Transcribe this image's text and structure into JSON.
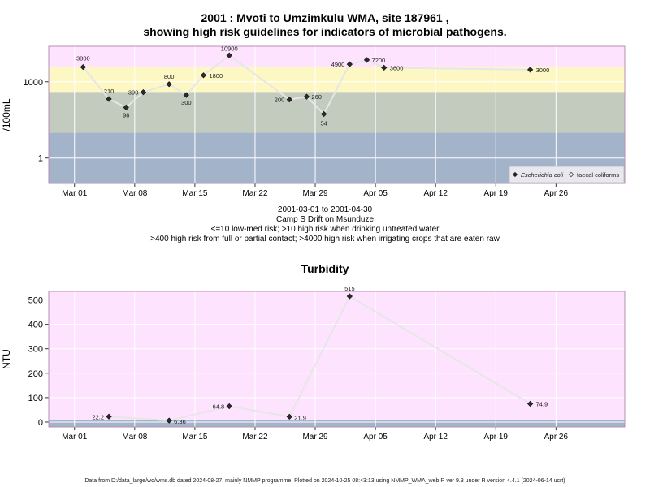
{
  "chart_data": [
    {
      "type": "scatter",
      "title_line1": "2001 : Mvoti to Umzimkulu WMA, site 187961 ,",
      "title_line2": "showing high risk guidelines for indicators of microbial pathogens.",
      "ylabel": "/100mL",
      "yscale": "log10",
      "ylim": [
        0.1,
        25000
      ],
      "xlim": [
        "2001-02-26",
        "2001-05-04"
      ],
      "ytick_values": [
        1,
        1000
      ],
      "ytick_labels": [
        "1",
        "1000"
      ],
      "xtick_dates": [
        "2001-03-01",
        "2001-03-08",
        "2001-03-15",
        "2001-03-22",
        "2001-03-29",
        "2001-04-05",
        "2001-04-12",
        "2001-04-19",
        "2001-04-26"
      ],
      "xtick_labels": [
        "Mar 01",
        "Mar 08",
        "Mar 15",
        "Mar 22",
        "Mar 29",
        "Apr 05",
        "Apr 12",
        "Apr 19",
        "Apr 26"
      ],
      "bands": [
        {
          "from": 0.1,
          "to": 10,
          "color": "#a3b3ca"
        },
        {
          "from": 10,
          "to": 400,
          "color": "#c3cbbe"
        },
        {
          "from": 400,
          "to": 4000,
          "color": "#fdf7c4"
        },
        {
          "from": 4000,
          "to": 25000,
          "color": "#fde3fd"
        }
      ],
      "grid": true,
      "legend_position": "bottom-right",
      "legend": [
        {
          "label": "Escherichia coli",
          "marker": "filled-diamond",
          "italic": true
        },
        {
          "label": "faecal coliforms",
          "marker": "open-diamond",
          "italic": false
        }
      ],
      "series": [
        {
          "name": "Escherichia coli",
          "x": [
            "2001-03-02",
            "2001-03-05",
            "2001-03-07",
            "2001-03-09",
            "2001-03-12",
            "2001-03-14",
            "2001-03-16",
            "2001-03-19",
            "2001-03-26",
            "2001-03-28",
            "2001-03-30",
            "2001-04-02",
            "2001-04-04",
            "2001-04-06",
            "2001-04-23"
          ],
          "y": [
            3800,
            210,
            98,
            390,
            800,
            300,
            1800,
            10900,
            200,
            260,
            54,
            4900,
            7200,
            3600,
            3000
          ],
          "labels": [
            "3800",
            "210",
            "98",
            "390",
            "800",
            "300",
            "1800",
            "10900",
            "200",
            "260",
            "54",
            "4900",
            "7200",
            "3600",
            "3000"
          ]
        }
      ]
    },
    {
      "type": "scatter",
      "title": "Turbidity",
      "ylabel": "NTU",
      "ylim": [
        -20,
        535
      ],
      "xlim": [
        "2001-02-26",
        "2001-05-04"
      ],
      "yticks": [
        0,
        100,
        200,
        300,
        400,
        500
      ],
      "xtick_dates": [
        "2001-03-01",
        "2001-03-08",
        "2001-03-15",
        "2001-03-22",
        "2001-03-29",
        "2001-04-05",
        "2001-04-12",
        "2001-04-19",
        "2001-04-26"
      ],
      "xtick_labels": [
        "Mar 01",
        "Mar 08",
        "Mar 15",
        "Mar 22",
        "Mar 29",
        "Apr 05",
        "Apr 12",
        "Apr 19",
        "Apr 26"
      ],
      "bands": [
        {
          "from": -20,
          "to": 10,
          "color": "#a3b3ca"
        },
        {
          "from": 10,
          "to": 535,
          "color": "#fde3fd"
        }
      ],
      "grid": true,
      "series": [
        {
          "name": "Turbidity",
          "x": [
            "2001-03-05",
            "2001-03-12",
            "2001-03-19",
            "2001-03-26",
            "2001-04-02",
            "2001-04-23"
          ],
          "y": [
            22.2,
            6.36,
            64.8,
            21.9,
            515,
            74.9
          ],
          "labels": [
            "22.2",
            "6.36",
            "64.8",
            "21.9",
            "515",
            "74.9"
          ]
        }
      ]
    }
  ],
  "caption": {
    "line1": "2001-03-01 to 2001-04-30",
    "line2": "Camp S Drift on Msunduze",
    "line3": "<=10 low-med risk; >10 high risk when drinking untreated water",
    "line4": ">400 high risk from full or partial contact; >4000 high risk when irrigating crops that are eaten raw"
  },
  "footer": "Data from D:/data_large/wq/wms.db dated 2024-08-27, mainly NMMP programme. Plotted on 2024-10-25 08:43:13 using NMMP_WMA_web.R ver 9.3 under R version 4.4.1 (2024-06-14 ucrt)"
}
